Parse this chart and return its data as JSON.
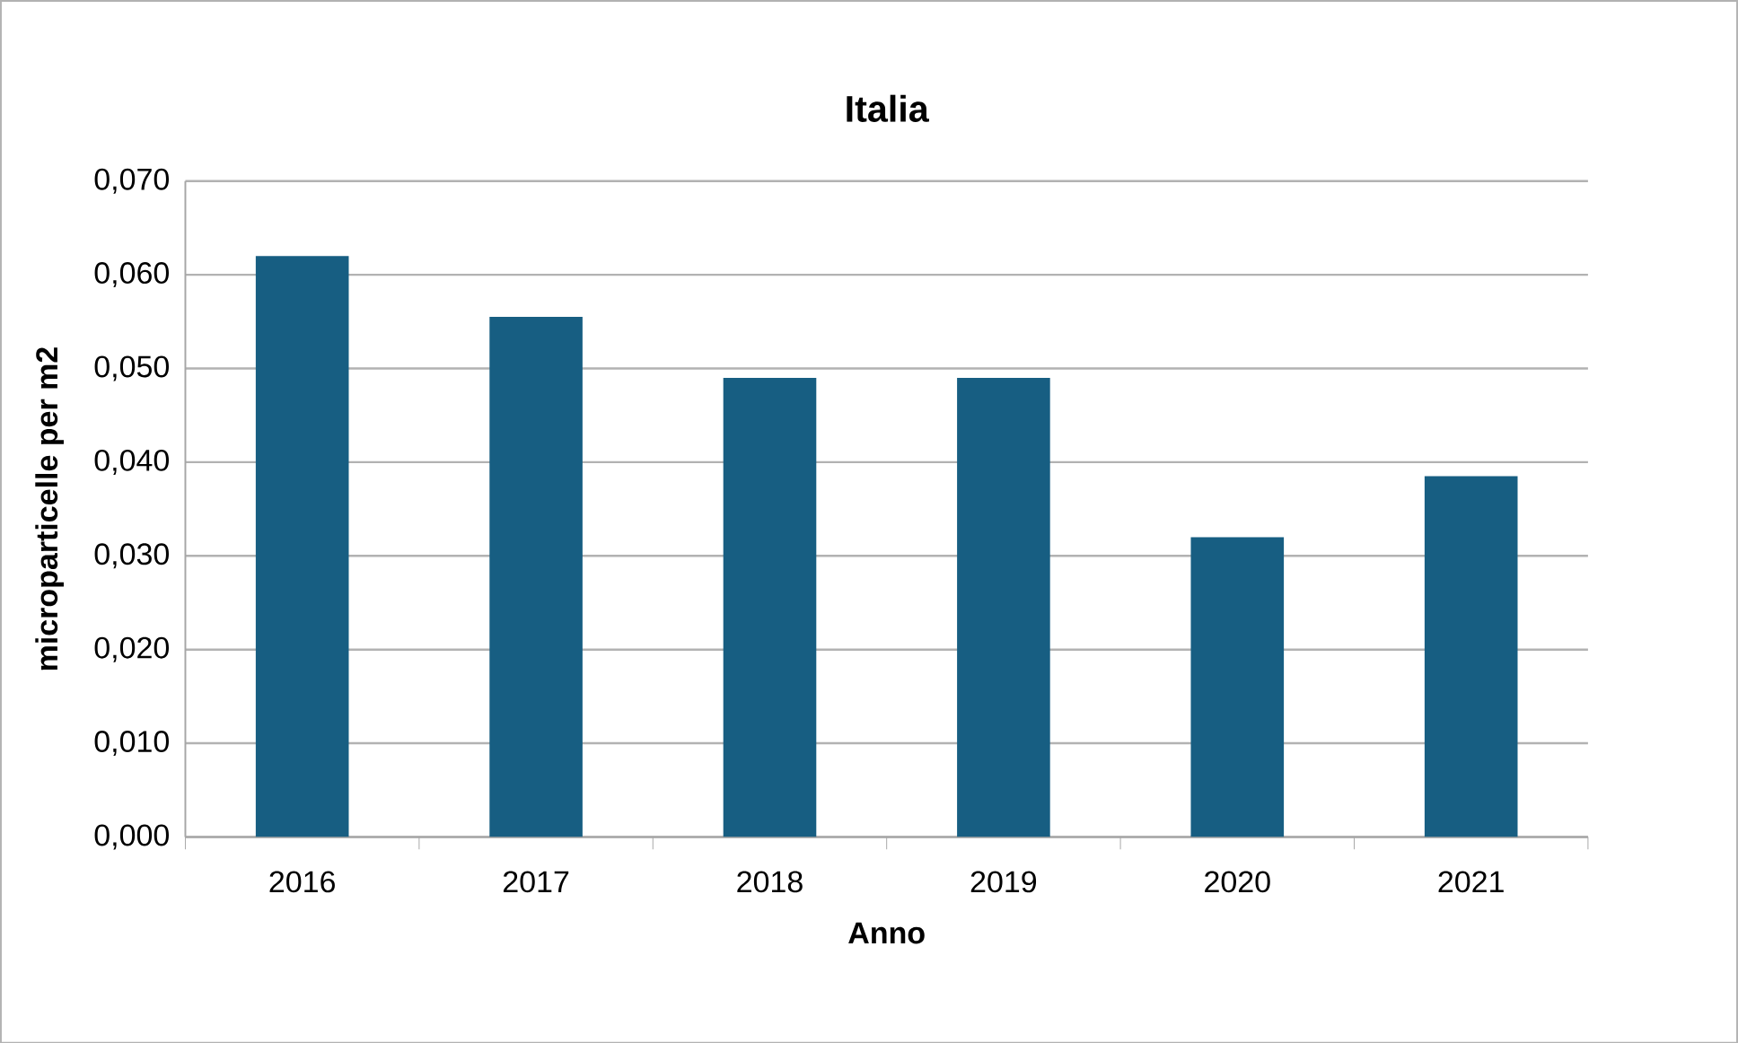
{
  "chart_data": {
    "type": "bar",
    "title": "Italia",
    "xlabel": "Anno",
    "ylabel": "microparticelle per m2",
    "categories": [
      "2016",
      "2017",
      "2018",
      "2019",
      "2020",
      "2021"
    ],
    "values": [
      0.062,
      0.0555,
      0.049,
      0.049,
      0.032,
      0.0385
    ],
    "color": "#175e82",
    "ylim": [
      0,
      0.07
    ],
    "yticks": [
      {
        "value": 0,
        "label": "0,000"
      },
      {
        "value": 0.01,
        "label": "0,010"
      },
      {
        "value": 0.02,
        "label": "0,020"
      },
      {
        "value": 0.03,
        "label": "0,030"
      },
      {
        "value": 0.04,
        "label": "0,040"
      },
      {
        "value": 0.05,
        "label": "0,050"
      },
      {
        "value": 0.06,
        "label": "0,060"
      },
      {
        "value": 0.07,
        "label": "0,070"
      }
    ],
    "grid": "y"
  }
}
